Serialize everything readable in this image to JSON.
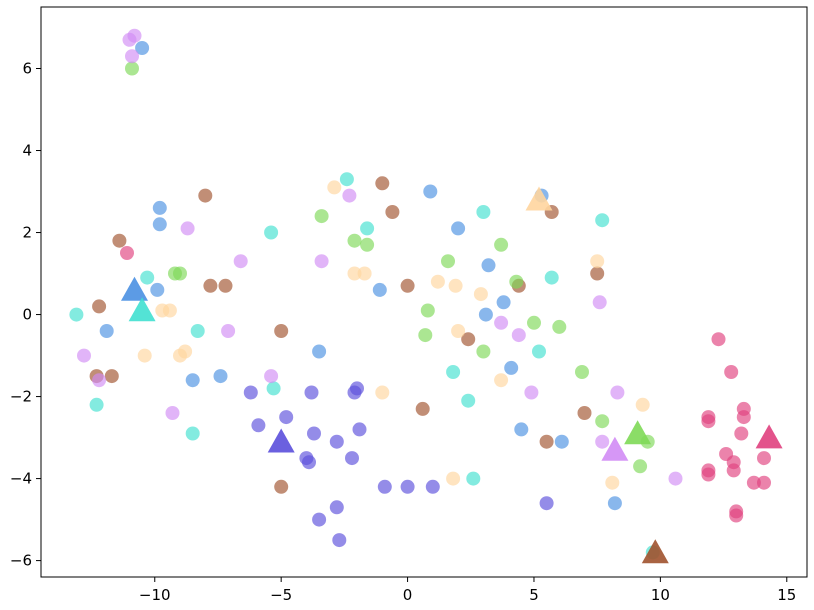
{
  "chart_data": {
    "type": "scatter",
    "title": "",
    "xlabel": "",
    "ylabel": "",
    "xlim": [
      -14.5,
      15.8
    ],
    "ylim": [
      -6.4,
      7.5
    ],
    "grid": false,
    "legend": "none",
    "x_ticks": [
      -10,
      -5,
      0,
      5,
      10,
      15
    ],
    "x_tick_labels": [
      "−10",
      "−5",
      "0",
      "5",
      "10",
      "15"
    ],
    "y_ticks": [
      -6,
      -4,
      -2,
      0,
      2,
      4,
      6
    ],
    "y_tick_labels": [
      "−6",
      "−4",
      "−2",
      "0",
      "2",
      "4",
      "6"
    ],
    "point_opacity": 0.65,
    "centroid_opacity": 0.9,
    "series": [
      {
        "color": "#4a90e2",
        "points": [
          [
            -10.5,
            6.5
          ],
          [
            -9.8,
            2.6
          ],
          [
            -9.8,
            2.2
          ],
          [
            -9.9,
            0.6
          ],
          [
            -11.9,
            -0.4
          ],
          [
            -8.5,
            -1.6
          ],
          [
            -7.4,
            -1.5
          ],
          [
            -3.5,
            -0.9
          ],
          [
            -1.1,
            0.6
          ],
          [
            0.9,
            3.0
          ],
          [
            2.0,
            2.1
          ],
          [
            3.2,
            1.2
          ],
          [
            3.8,
            0.3
          ],
          [
            3.1,
            0.0
          ],
          [
            4.1,
            -1.3
          ],
          [
            4.5,
            -2.8
          ],
          [
            6.1,
            -3.1
          ],
          [
            8.2,
            -4.6
          ],
          [
            5.3,
            2.9
          ]
        ],
        "centroid": [
          -10.8,
          0.6
        ]
      },
      {
        "color": "#40e0d0",
        "points": [
          [
            -13.1,
            0.0
          ],
          [
            -12.3,
            -2.2
          ],
          [
            -10.3,
            0.9
          ],
          [
            -8.3,
            -0.4
          ],
          [
            -8.5,
            -2.9
          ],
          [
            -5.4,
            2.0
          ],
          [
            -5.3,
            -1.8
          ],
          [
            -2.4,
            3.3
          ],
          [
            -1.6,
            2.1
          ],
          [
            1.8,
            -1.4
          ],
          [
            2.4,
            -2.1
          ],
          [
            3.0,
            2.5
          ],
          [
            2.6,
            -4.0
          ],
          [
            5.2,
            -0.9
          ],
          [
            5.7,
            0.9
          ],
          [
            7.7,
            2.3
          ],
          [
            9.7,
            -5.8
          ]
        ],
        "centroid": [
          -10.5,
          0.1
        ]
      },
      {
        "color": "#5b4fdb",
        "points": [
          [
            -6.2,
            -1.9
          ],
          [
            -5.9,
            -2.7
          ],
          [
            -4.8,
            -2.5
          ],
          [
            -3.8,
            -1.9
          ],
          [
            -3.7,
            -2.9
          ],
          [
            -4.0,
            -3.5
          ],
          [
            -3.9,
            -3.6
          ],
          [
            -3.5,
            -5.0
          ],
          [
            -2.8,
            -3.1
          ],
          [
            -2.8,
            -4.7
          ],
          [
            -2.7,
            -5.5
          ],
          [
            -2.2,
            -3.5
          ],
          [
            -2.1,
            -1.9
          ],
          [
            -2.0,
            -1.8
          ],
          [
            -1.9,
            -2.8
          ],
          [
            -0.9,
            -4.2
          ],
          [
            0.0,
            -4.2
          ],
          [
            1.0,
            -4.2
          ],
          [
            5.5,
            -4.6
          ]
        ],
        "centroid": [
          -5.0,
          -3.1
        ]
      },
      {
        "color": "#a0522d",
        "points": [
          [
            -11.4,
            1.8
          ],
          [
            -12.2,
            0.2
          ],
          [
            -12.3,
            -1.5
          ],
          [
            -11.7,
            -1.5
          ],
          [
            -8.0,
            2.9
          ],
          [
            -7.8,
            0.7
          ],
          [
            -7.2,
            0.7
          ],
          [
            -5.0,
            -0.4
          ],
          [
            -5.0,
            -4.2
          ],
          [
            -1.0,
            3.2
          ],
          [
            -0.6,
            2.5
          ],
          [
            0.0,
            0.7
          ],
          [
            0.6,
            -2.3
          ],
          [
            2.4,
            -0.6
          ],
          [
            4.4,
            0.7
          ],
          [
            5.5,
            -3.1
          ],
          [
            5.7,
            2.5
          ],
          [
            7.0,
            -2.4
          ],
          [
            7.5,
            1.0
          ]
        ],
        "centroid": [
          9.8,
          -5.8
        ]
      },
      {
        "color": "#ffd59e",
        "points": [
          [
            -10.4,
            -1.0
          ],
          [
            -9.7,
            0.1
          ],
          [
            -9.4,
            0.1
          ],
          [
            -9.0,
            -1.0
          ],
          [
            -8.8,
            -0.9
          ],
          [
            -2.9,
            3.1
          ],
          [
            -2.1,
            1.0
          ],
          [
            -1.7,
            1.0
          ],
          [
            -1.0,
            -1.9
          ],
          [
            1.2,
            0.8
          ],
          [
            1.9,
            0.7
          ],
          [
            2.0,
            -0.4
          ],
          [
            2.9,
            0.5
          ],
          [
            3.7,
            -1.6
          ],
          [
            1.8,
            -4.0
          ],
          [
            8.1,
            -4.1
          ],
          [
            7.5,
            1.3
          ],
          [
            9.3,
            -2.2
          ]
        ],
        "centroid": [
          5.2,
          2.8
        ]
      },
      {
        "color": "#7ed957",
        "points": [
          [
            -10.9,
            6.0
          ],
          [
            -9.2,
            1.0
          ],
          [
            -9.0,
            1.0
          ],
          [
            -3.4,
            2.4
          ],
          [
            -2.1,
            1.8
          ],
          [
            -1.6,
            1.7
          ],
          [
            0.7,
            -0.5
          ],
          [
            0.8,
            0.1
          ],
          [
            1.6,
            1.3
          ],
          [
            3.0,
            -0.9
          ],
          [
            3.7,
            1.7
          ],
          [
            4.3,
            0.8
          ],
          [
            5.0,
            -0.2
          ],
          [
            6.0,
            -0.3
          ],
          [
            6.9,
            -1.4
          ],
          [
            7.7,
            -2.6
          ],
          [
            9.2,
            -3.7
          ],
          [
            9.5,
            -3.1
          ]
        ],
        "centroid": [
          9.1,
          -2.9
        ]
      },
      {
        "color": "#d18cf5",
        "points": [
          [
            -11.0,
            6.7
          ],
          [
            -10.9,
            6.3
          ],
          [
            -10.8,
            6.8
          ],
          [
            -12.8,
            -1.0
          ],
          [
            -12.2,
            -1.6
          ],
          [
            -9.3,
            -2.4
          ],
          [
            -8.7,
            2.1
          ],
          [
            -6.6,
            1.3
          ],
          [
            -7.1,
            -0.4
          ],
          [
            -5.4,
            -1.5
          ],
          [
            -3.4,
            1.3
          ],
          [
            -2.3,
            2.9
          ],
          [
            3.7,
            -0.2
          ],
          [
            4.4,
            -0.5
          ],
          [
            4.9,
            -1.9
          ],
          [
            7.6,
            0.3
          ],
          [
            7.7,
            -3.1
          ],
          [
            8.3,
            -1.9
          ],
          [
            10.6,
            -4.0
          ]
        ],
        "centroid": [
          8.2,
          -3.3
        ]
      },
      {
        "color": "#e0407e",
        "points": [
          [
            -11.1,
            1.5
          ],
          [
            12.3,
            -0.6
          ],
          [
            12.8,
            -1.4
          ],
          [
            11.9,
            -2.5
          ],
          [
            11.9,
            -2.6
          ],
          [
            12.6,
            -3.4
          ],
          [
            12.9,
            -3.6
          ],
          [
            12.9,
            -3.8
          ],
          [
            11.9,
            -3.8
          ],
          [
            11.9,
            -3.9
          ],
          [
            13.3,
            -2.3
          ],
          [
            13.3,
            -2.5
          ],
          [
            13.2,
            -2.9
          ],
          [
            13.0,
            -4.8
          ],
          [
            13.0,
            -4.9
          ],
          [
            13.7,
            -4.1
          ],
          [
            14.1,
            -3.5
          ],
          [
            14.1,
            -4.1
          ]
        ],
        "centroid": [
          14.3,
          -3.0
        ]
      }
    ]
  }
}
